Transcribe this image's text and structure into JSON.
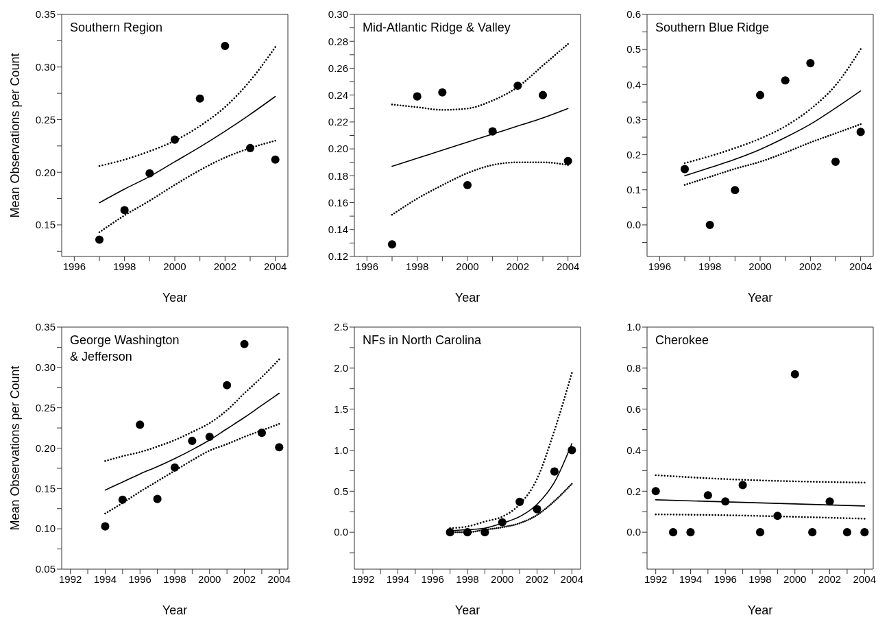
{
  "chart_data": [
    {
      "type": "scatter",
      "title": "Southern Region",
      "xlabel": "Year",
      "ylabel": "Mean Observations per Count",
      "xlim": [
        1995.5,
        2004.5
      ],
      "ylim": [
        0.12,
        0.35
      ],
      "grid": false,
      "legend": false,
      "xticks": [
        1996,
        {
          "value": 1997,
          "label": null
        },
        1998,
        {
          "value": 1999,
          "label": null
        },
        2000,
        {
          "value": 2001,
          "label": null
        },
        2002,
        {
          "value": 2003,
          "label": null
        },
        2004
      ],
      "yticks": [
        {
          "value": 0.125,
          "label": null
        },
        0.15,
        {
          "value": 0.175,
          "label": null
        },
        {
          "value": 0.2,
          "label": "0.20"
        },
        {
          "value": 0.225,
          "label": null
        },
        0.25,
        {
          "value": 0.275,
          "label": null
        },
        {
          "value": 0.3,
          "label": "0.30"
        },
        {
          "value": 0.325,
          "label": null
        },
        0.35
      ],
      "series": [
        {
          "type": "scatter",
          "color": "#000000",
          "marker": "circle",
          "x": [
            1997,
            1998,
            1999,
            2000,
            2001,
            2002,
            2003,
            2004
          ],
          "values": [
            0.136,
            0.164,
            0.199,
            0.231,
            0.27,
            0.32,
            0.223,
            0.212
          ]
        },
        {
          "type": "line",
          "color": "#000000",
          "line_style": "solid",
          "x": [
            1997,
            1998,
            1999,
            2000,
            2001,
            2002,
            2003,
            2004
          ],
          "values": [
            0.171,
            0.184,
            0.196,
            0.21,
            0.224,
            0.239,
            0.255,
            0.272
          ]
        },
        {
          "type": "line",
          "color": "#000000",
          "line_style": "dotted",
          "x": [
            1997,
            1998,
            1999,
            2000,
            2001,
            2002,
            2003,
            2004
          ],
          "values": [
            0.206,
            0.212,
            0.22,
            0.23,
            0.244,
            0.262,
            0.287,
            0.319
          ]
        },
        {
          "type": "line",
          "color": "#000000",
          "line_style": "dotted",
          "x": [
            1997,
            1998,
            1999,
            2000,
            2001,
            2002,
            2003,
            2004
          ],
          "values": [
            0.143,
            0.159,
            0.173,
            0.188,
            0.202,
            0.214,
            0.223,
            0.23
          ]
        }
      ]
    },
    {
      "type": "scatter",
      "title": "Mid-Atlantic Ridge & Valley",
      "xlabel": "Year",
      "xlim": [
        1995.5,
        2004.5
      ],
      "ylim": [
        0.12,
        0.3
      ],
      "grid": false,
      "legend": false,
      "xticks": [
        1996,
        {
          "value": 1997,
          "label": null
        },
        1998,
        {
          "value": 1999,
          "label": null
        },
        2000,
        {
          "value": 2001,
          "label": null
        },
        2002,
        {
          "value": 2003,
          "label": null
        },
        2004
      ],
      "yticks": [
        0.12,
        {
          "value": 0.13,
          "label": null
        },
        0.14,
        {
          "value": 0.15,
          "label": null
        },
        0.16,
        {
          "value": 0.17,
          "label": null
        },
        0.18,
        {
          "value": 0.19,
          "label": null
        },
        {
          "value": 0.2,
          "label": "0.20"
        },
        {
          "value": 0.21,
          "label": null
        },
        0.22,
        {
          "value": 0.23,
          "label": null
        },
        0.24,
        {
          "value": 0.25,
          "label": null
        },
        0.26,
        {
          "value": 0.27,
          "label": null
        },
        0.28,
        {
          "value": 0.29,
          "label": null
        },
        {
          "value": 0.3,
          "label": "0.30"
        }
      ],
      "series": [
        {
          "type": "scatter",
          "color": "#000000",
          "marker": "circle",
          "x": [
            1997,
            1998,
            1999,
            2000,
            2001,
            2002,
            2003,
            2004
          ],
          "values": [
            0.129,
            0.239,
            0.242,
            0.173,
            0.213,
            0.247,
            0.24,
            0.191
          ]
        },
        {
          "type": "line",
          "color": "#000000",
          "line_style": "solid",
          "x": [
            1997,
            1998,
            1999,
            2000,
            2001,
            2002,
            2003,
            2004
          ],
          "values": [
            0.187,
            0.193,
            0.199,
            0.205,
            0.211,
            0.217,
            0.223,
            0.23
          ]
        },
        {
          "type": "line",
          "color": "#000000",
          "line_style": "dotted",
          "x": [
            1997,
            1998,
            1999,
            2000,
            2001,
            2002,
            2003,
            2004
          ],
          "values": [
            0.233,
            0.231,
            0.229,
            0.23,
            0.236,
            0.246,
            0.262,
            0.278
          ]
        },
        {
          "type": "line",
          "color": "#000000",
          "line_style": "dotted",
          "x": [
            1997,
            1998,
            1999,
            2000,
            2001,
            2002,
            2003,
            2004
          ],
          "values": [
            0.151,
            0.163,
            0.173,
            0.182,
            0.188,
            0.19,
            0.19,
            0.188
          ]
        }
      ]
    },
    {
      "type": "scatter",
      "title": "Southern Blue Ridge",
      "xlabel": "Year",
      "xlim": [
        1995.5,
        2004.5
      ],
      "ylim": [
        -0.09,
        0.6
      ],
      "grid": false,
      "legend": false,
      "xticks": [
        1996,
        {
          "value": 1997,
          "label": null
        },
        1998,
        {
          "value": 1999,
          "label": null
        },
        2000,
        {
          "value": 2001,
          "label": null
        },
        2002,
        {
          "value": 2003,
          "label": null
        },
        2004
      ],
      "yticks": [
        {
          "value": -0.05,
          "label": null
        },
        {
          "value": 0,
          "label": "0.0"
        },
        {
          "value": 0.05,
          "label": null
        },
        0.1,
        {
          "value": 0.15,
          "label": null
        },
        0.2,
        {
          "value": 0.25,
          "label": null
        },
        0.3,
        {
          "value": 0.35,
          "label": null
        },
        0.4,
        {
          "value": 0.45,
          "label": null
        },
        0.5,
        {
          "value": 0.55,
          "label": null
        },
        0.6
      ],
      "series": [
        {
          "type": "scatter",
          "color": "#000000",
          "marker": "circle",
          "x": [
            1997,
            1998,
            1999,
            2000,
            2001,
            2002,
            2003,
            2004
          ],
          "values": [
            0.159,
            0.0,
            0.099,
            0.37,
            0.412,
            0.461,
            0.18,
            0.265
          ]
        },
        {
          "type": "line",
          "color": "#000000",
          "line_style": "solid",
          "x": [
            1997,
            1998,
            1999,
            2000,
            2001,
            2002,
            2003,
            2004
          ],
          "values": [
            0.14,
            0.163,
            0.187,
            0.215,
            0.249,
            0.287,
            0.333,
            0.382
          ]
        },
        {
          "type": "line",
          "color": "#000000",
          "line_style": "dotted",
          "x": [
            1997,
            1998,
            1999,
            2000,
            2001,
            2002,
            2003,
            2004
          ],
          "values": [
            0.176,
            0.196,
            0.219,
            0.246,
            0.281,
            0.33,
            0.398,
            0.501
          ]
        },
        {
          "type": "line",
          "color": "#000000",
          "line_style": "dotted",
          "x": [
            1997,
            1998,
            1999,
            2000,
            2001,
            2002,
            2003,
            2004
          ],
          "values": [
            0.114,
            0.137,
            0.16,
            0.18,
            0.206,
            0.235,
            0.261,
            0.287
          ]
        }
      ]
    },
    {
      "type": "scatter",
      "title": "George Washington\n& Jefferson",
      "xlabel": "Year",
      "ylabel": "Mean Observations per Count",
      "xlim": [
        1991.5,
        2004.5
      ],
      "ylim": [
        0.05,
        0.35
      ],
      "grid": false,
      "legend": false,
      "xticks": [
        1992,
        {
          "value": 1993,
          "label": null
        },
        1994,
        {
          "value": 1995,
          "label": null
        },
        1996,
        {
          "value": 1997,
          "label": null
        },
        1998,
        {
          "value": 1999,
          "label": null
        },
        2000,
        {
          "value": 2001,
          "label": null
        },
        2002,
        {
          "value": 2003,
          "label": null
        },
        2004
      ],
      "yticks": [
        0.05,
        {
          "value": 0.075,
          "label": null
        },
        {
          "value": 0.1,
          "label": "0.10"
        },
        {
          "value": 0.125,
          "label": null
        },
        0.15,
        {
          "value": 0.175,
          "label": null
        },
        {
          "value": 0.2,
          "label": "0.20"
        },
        {
          "value": 0.225,
          "label": null
        },
        0.25,
        {
          "value": 0.275,
          "label": null
        },
        {
          "value": 0.3,
          "label": "0.30"
        },
        {
          "value": 0.325,
          "label": null
        },
        0.35
      ],
      "series": [
        {
          "type": "scatter",
          "color": "#000000",
          "marker": "circle",
          "x": [
            1994,
            1995,
            1996,
            1997,
            1998,
            1999,
            2000,
            2001,
            2002,
            2003,
            2004
          ],
          "values": [
            0.103,
            0.136,
            0.229,
            0.137,
            0.176,
            0.209,
            0.214,
            0.278,
            0.329,
            0.219,
            0.201
          ]
        },
        {
          "type": "line",
          "color": "#000000",
          "line_style": "solid",
          "x": [
            1994,
            1995,
            1996,
            1997,
            1998,
            1999,
            2000,
            2001,
            2002,
            2003,
            2004
          ],
          "values": [
            0.148,
            0.158,
            0.168,
            0.177,
            0.187,
            0.198,
            0.21,
            0.224,
            0.238,
            0.253,
            0.268
          ]
        },
        {
          "type": "line",
          "color": "#000000",
          "line_style": "dotted",
          "x": [
            1994,
            1995,
            1996,
            1997,
            1998,
            1999,
            2000,
            2001,
            2002,
            2003,
            2004
          ],
          "values": [
            0.184,
            0.19,
            0.195,
            0.202,
            0.21,
            0.22,
            0.231,
            0.247,
            0.268,
            0.288,
            0.31
          ]
        },
        {
          "type": "line",
          "color": "#000000",
          "line_style": "dotted",
          "x": [
            1994,
            1995,
            1996,
            1997,
            1998,
            1999,
            2000,
            2001,
            2002,
            2003,
            2004
          ],
          "values": [
            0.119,
            0.132,
            0.146,
            0.159,
            0.172,
            0.185,
            0.197,
            0.205,
            0.214,
            0.222,
            0.23
          ]
        }
      ]
    },
    {
      "type": "scatter",
      "title": "NFs in North Carolina",
      "xlabel": "Year",
      "xlim": [
        1991.5,
        2004.5
      ],
      "ylim": [
        -0.45,
        2.5
      ],
      "grid": false,
      "legend": false,
      "xticks": [
        1992,
        {
          "value": 1993,
          "label": null
        },
        1994,
        {
          "value": 1995,
          "label": null
        },
        1996,
        {
          "value": 1997,
          "label": null
        },
        1998,
        {
          "value": 1999,
          "label": null
        },
        2000,
        {
          "value": 2001,
          "label": null
        },
        2002,
        {
          "value": 2003,
          "label": null
        },
        2004
      ],
      "yticks": [
        {
          "value": -0.25,
          "label": null
        },
        {
          "value": 0,
          "label": "0.0"
        },
        {
          "value": 0.25,
          "label": null
        },
        0.5,
        {
          "value": 0.75,
          "label": null
        },
        {
          "value": 1,
          "label": "1.0"
        },
        {
          "value": 1.25,
          "label": null
        },
        1.5,
        {
          "value": 1.75,
          "label": null
        },
        {
          "value": 2,
          "label": "2.0"
        },
        {
          "value": 2.25,
          "label": null
        },
        2.5
      ],
      "series": [
        {
          "type": "scatter",
          "color": "#000000",
          "marker": "circle",
          "x": [
            1997,
            1998,
            1999,
            2000,
            2001,
            2002,
            2003,
            2004
          ],
          "values": [
            0.0,
            0.0,
            0.0,
            0.12,
            0.37,
            0.28,
            0.74,
            1.0
          ]
        },
        {
          "type": "line",
          "color": "#000000",
          "line_style": "solid",
          "x": [
            1997,
            1998,
            1999,
            2000,
            2001,
            2002,
            2003,
            2004
          ],
          "values": [
            0.02,
            0.03,
            0.05,
            0.11,
            0.19,
            0.34,
            0.61,
            1.08
          ]
        },
        {
          "type": "line",
          "color": "#000000",
          "line_style": "dotted",
          "x": [
            1997,
            1998,
            1999,
            2000,
            2001,
            2002,
            2003,
            2004
          ],
          "values": [
            0.05,
            0.07,
            0.13,
            0.19,
            0.34,
            0.65,
            1.24,
            1.94
          ]
        },
        {
          "type": "line",
          "color": "#000000",
          "line_style": "dotted",
          "x": [
            1997,
            1998,
            1999,
            2000,
            2001,
            2002,
            2003,
            2004
          ],
          "values": [
            0.0,
            0.0,
            0.03,
            0.06,
            0.11,
            0.21,
            0.38,
            0.59
          ]
        }
      ]
    },
    {
      "type": "scatter",
      "title": "Cherokee",
      "xlabel": "Year",
      "xlim": [
        1991.5,
        2004.5
      ],
      "ylim": [
        -0.18,
        1.0
      ],
      "grid": false,
      "legend": false,
      "xticks": [
        1992,
        {
          "value": 1993,
          "label": null
        },
        1994,
        {
          "value": 1995,
          "label": null
        },
        1996,
        {
          "value": 1997,
          "label": null
        },
        1998,
        {
          "value": 1999,
          "label": null
        },
        2000,
        {
          "value": 2001,
          "label": null
        },
        2002,
        {
          "value": 2003,
          "label": null
        },
        2004
      ],
      "yticks": [
        {
          "value": -0.1,
          "label": null
        },
        {
          "value": 0,
          "label": "0.0"
        },
        {
          "value": 0.1,
          "label": null
        },
        0.2,
        {
          "value": 0.3,
          "label": null
        },
        0.4,
        {
          "value": 0.5,
          "label": null
        },
        0.6,
        {
          "value": 0.7,
          "label": null
        },
        0.8,
        {
          "value": 0.9,
          "label": null
        },
        {
          "value": 1,
          "label": "1.0"
        }
      ],
      "series": [
        {
          "type": "scatter",
          "color": "#000000",
          "marker": "circle",
          "x": [
            1992,
            1993,
            1994,
            1995,
            1996,
            1997,
            1998,
            1999,
            2000,
            2001,
            2002,
            2003,
            2004
          ],
          "values": [
            0.2,
            0.0,
            0.0,
            0.18,
            0.15,
            0.23,
            0.0,
            0.08,
            0.77,
            0.0,
            0.15,
            0.0,
            0.0
          ]
        },
        {
          "type": "line",
          "color": "#000000",
          "line_style": "solid",
          "x": [
            1992,
            2004
          ],
          "values": [
            0.158,
            0.128
          ]
        },
        {
          "type": "line",
          "color": "#000000",
          "line_style": "dotted",
          "x": [
            1992,
            1996,
            2000,
            2004
          ],
          "values": [
            0.278,
            0.259,
            0.248,
            0.242
          ]
        },
        {
          "type": "line",
          "color": "#000000",
          "line_style": "dotted",
          "x": [
            1992,
            1996,
            2000,
            2004
          ],
          "values": [
            0.087,
            0.083,
            0.075,
            0.066
          ]
        }
      ]
    }
  ]
}
